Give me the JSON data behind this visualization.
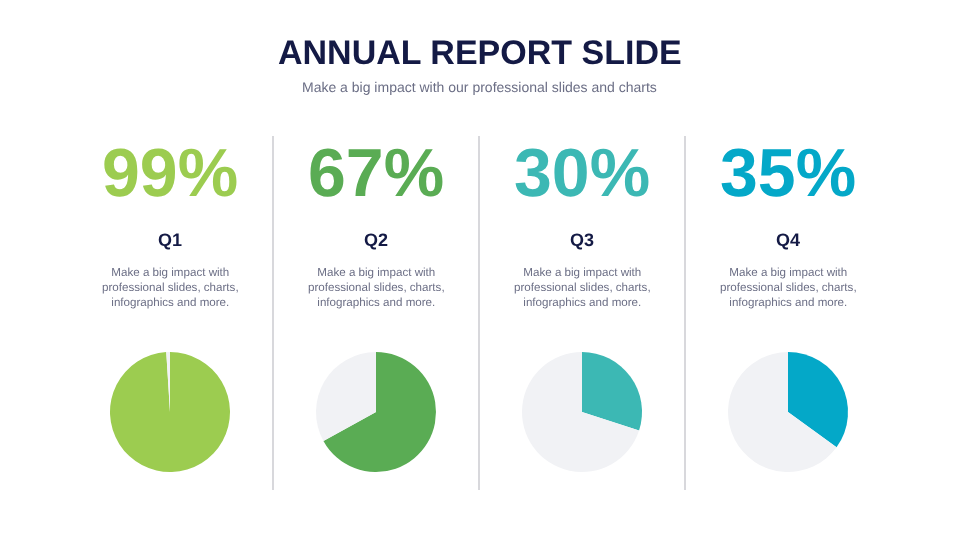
{
  "chart_data": [
    {
      "type": "pie",
      "title": "Q1",
      "subtitle": "Make a big impact with professional slides, charts, infographics and more.",
      "annotations": [
        "ANNUAL REPORT SLIDE",
        "Make a big impact with our professional slides and charts"
      ],
      "categories": [
        null,
        null
      ],
      "values": [
        99,
        1
      ],
      "colors": [
        "#9ccc50",
        "#f1f2f5"
      ],
      "value_labels": [
        "99%",
        null
      ]
    },
    {
      "type": "pie",
      "title": "Q2",
      "subtitle": "Make a big impact with professional slides, charts, infographics and more.",
      "categories": [
        null,
        null
      ],
      "values": [
        67,
        33
      ],
      "colors": [
        "#5aac54",
        "#f1f2f5"
      ],
      "value_labels": [
        "67%",
        null
      ]
    },
    {
      "type": "pie",
      "title": "Q3",
      "subtitle": "Make a big impact with professional slides, charts, infographics and more.",
      "categories": [
        null,
        null
      ],
      "values": [
        30,
        70
      ],
      "colors": [
        "#3cb8b4",
        "#f1f2f5"
      ],
      "value_labels": [
        "30%",
        null
      ]
    },
    {
      "type": "pie",
      "title": "Q4",
      "subtitle": "Make a big impact with professional slides, charts, infographics and more.",
      "categories": [
        null,
        null
      ],
      "values": [
        35,
        65
      ],
      "colors": [
        "#04a8c8",
        "#f1f2f5"
      ],
      "value_labels": [
        "35%",
        null
      ]
    }
  ]
}
